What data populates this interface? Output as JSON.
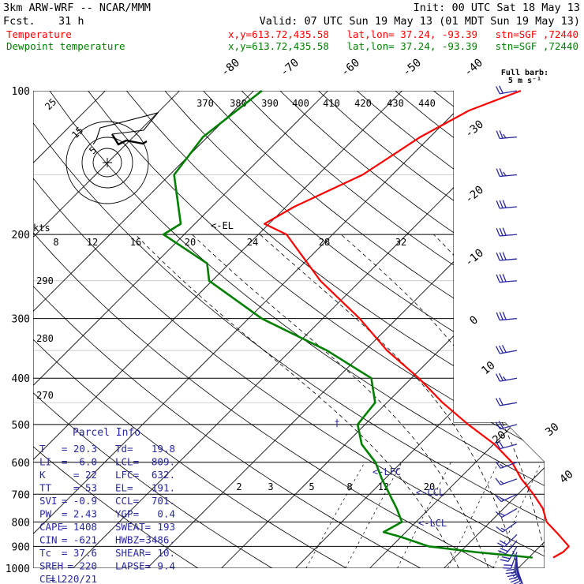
{
  "header": {
    "model": "3km ARW-WRF -- NCAR/MMM",
    "init": "Init: 00 UTC Sat 18 May 13",
    "fcst_label": "Fcst.",
    "fcst_value": "31 h",
    "valid": "Valid: 07 UTC Sun 19 May 13 (01 MDT Sun 19 May 13)",
    "temp_label": "Temperature",
    "temp_info": "x,y=613.72,435.58   lat,lon= 37.24, -93.39   stn=SGF ,72440",
    "dew_label": "Dewpoint temperature",
    "dew_info": "x,y=613.72,435.58   lat,lon= 37.24, -93.39   stn=SGF ,72440"
  },
  "colors": {
    "temperature": "#ff0000",
    "dewpoint": "#008000",
    "barbs": "#2828a0",
    "annotation": "#2828a0",
    "grid": "#000000"
  },
  "barb_legend": {
    "line1": "Full barb:",
    "line2": "5 m s⁻¹"
  },
  "hodograph": {
    "units": "kts",
    "ring_labels": [
      "5",
      "15",
      "25"
    ]
  },
  "parcel_info": {
    "title": "Parcel Info",
    "rows": [
      {
        "l1": "T",
        "v1": "20.3",
        "l2": "Td",
        "v2": "19.8"
      },
      {
        "l1": "LI",
        "v1": "-6.0",
        "l2": "LCL",
        "v2": "809."
      },
      {
        "l1": "K",
        "v1": "22",
        "l2": "LFC",
        "v2": "632."
      },
      {
        "l1": "TT",
        "v1": "53",
        "l2": "EL",
        "v2": "191."
      },
      {
        "l1": "SVI",
        "v1": "-0.9",
        "l2": "CCL",
        "v2": "701."
      },
      {
        "l1": "PW",
        "v1": "2.43",
        "l2": "YGP",
        "v2": "0.4"
      },
      {
        "l1": "CAPE",
        "v1": "1408",
        "l2": "SWEAT",
        "v2": "193"
      },
      {
        "l1": "CIN",
        "v1": "-621",
        "l2": "HWBZ",
        "v2": "3486."
      },
      {
        "l1": "Tc",
        "v1": "37.6",
        "l2": "SHEAR",
        "v2": "10."
      },
      {
        "l1": "SREH",
        "v1": "220",
        "l2": "LAPSE",
        "v2": "9.4"
      },
      {
        "l1": "CELL",
        "v1": "220/21",
        "l2": "",
        "v2": ""
      }
    ]
  },
  "chart_data": {
    "type": "line",
    "subtype": "skew-t log-p",
    "ylim": [
      1000,
      100
    ],
    "y_log_scale": true,
    "pressure_ticks": [
      1000,
      900,
      800,
      700,
      600,
      500,
      400,
      300,
      200,
      100
    ],
    "isotherm_labels": [
      "-80",
      "-70",
      "-60",
      "-50",
      "-40",
      "-30",
      "-20",
      "-10",
      "0",
      "10",
      "20",
      "30",
      "40"
    ],
    "theta_labels": [
      "370",
      "380",
      "390",
      "400",
      "410",
      "420",
      "430",
      "440"
    ],
    "left_theta_labels": [
      "290",
      "280",
      "270"
    ],
    "mixing_ratio_upper": [
      "8",
      "12",
      "16",
      "20",
      "24",
      "28",
      "32"
    ],
    "mixing_ratio_lower": [
      "2",
      "3",
      "5",
      "8",
      "12",
      "20"
    ],
    "level_annotations": {
      "el": "<-EL",
      "lfc": "<-LFC",
      "ccl": "<-CCL",
      "lcl": "<-LCL"
    },
    "series": [
      {
        "name": "Temperature",
        "p": [
          950,
          925,
          900,
          850,
          800,
          750,
          700,
          650,
          600,
          550,
          500,
          450,
          400,
          350,
          300,
          250,
          200,
          190,
          175,
          150,
          125,
          110,
          100
        ],
        "t": [
          23.3,
          23.9,
          23.9,
          20.9,
          17.6,
          15.3,
          12.1,
          8.4,
          4.9,
          0.1,
          -6.1,
          -12.5,
          -19.0,
          -27.0,
          -35.0,
          -45.4,
          -56.2,
          -60.6,
          -58.9,
          -54.0,
          -51.3,
          -48.3,
          -44.0
        ]
      },
      {
        "name": "Dewpoint temperature",
        "p": [
          950,
          925,
          900,
          860,
          840,
          800,
          750,
          700,
          650,
          600,
          550,
          500,
          450,
          400,
          350,
          300,
          250,
          230,
          200,
          190,
          150,
          125,
          100
        ],
        "t": [
          20.5,
          12.0,
          5.0,
          0.0,
          -3.0,
          -1.9,
          -4.4,
          -7.3,
          -10.4,
          -13.5,
          -17.8,
          -21.0,
          -21.6,
          -25.4,
          -35.1,
          -48.2,
          -60.4,
          -63.0,
          -72.8,
          -71.9,
          -79.4,
          -80.6,
          -78.9
        ]
      }
    ],
    "wind_barbs": {
      "p": [
        1000,
        990,
        980,
        970,
        960,
        950,
        940,
        925,
        900,
        875,
        850,
        800,
        750,
        700,
        650,
        600,
        550,
        500,
        450,
        400,
        350,
        300,
        250,
        225,
        200,
        175,
        150,
        125,
        100
      ],
      "dir": [
        160,
        165,
        170,
        175,
        180,
        185,
        190,
        200,
        210,
        220,
        225,
        235,
        240,
        245,
        250,
        250,
        255,
        255,
        260,
        260,
        260,
        265,
        265,
        265,
        265,
        265,
        265,
        265,
        260
      ],
      "speed": [
        10,
        12,
        14,
        15,
        16,
        18,
        20,
        22,
        24,
        22,
        20,
        18,
        16,
        16,
        16,
        18,
        20,
        22,
        24,
        26,
        30,
        32,
        34,
        34,
        32,
        30,
        28,
        26,
        24
      ]
    }
  }
}
